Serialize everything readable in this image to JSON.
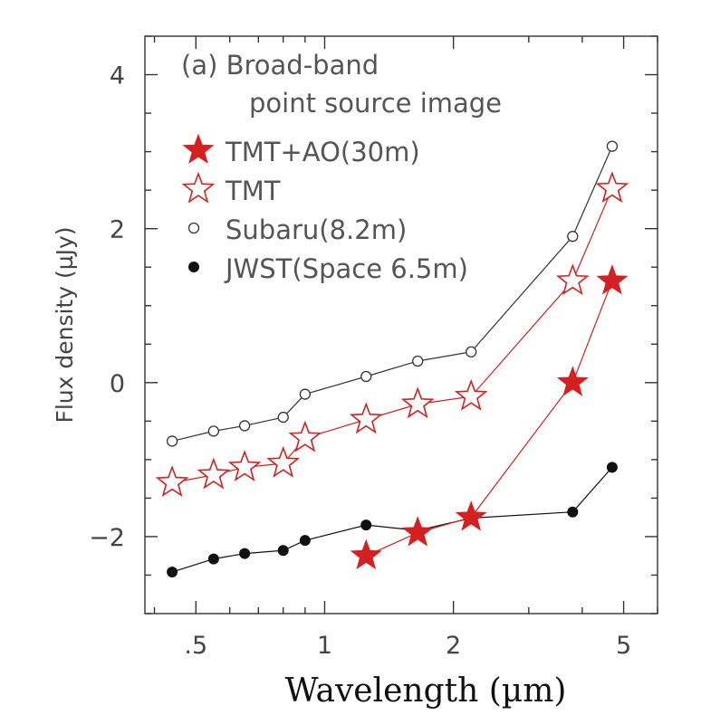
{
  "chart_data": {
    "type": "line",
    "title_lines": [
      "(a) Broad-band",
      "point source image"
    ],
    "xlabel": "Wavelength (µm)",
    "ylabel": "Flux density (µJy)",
    "xscale": "log",
    "xlim": [
      0.38,
      6.0
    ],
    "ylim": [
      -3.0,
      4.5
    ],
    "xticks": [
      {
        "value": 0.5,
        "label": ".5"
      },
      {
        "value": 1,
        "label": "1"
      },
      {
        "value": 2,
        "label": "2"
      },
      {
        "value": 5,
        "label": "5"
      }
    ],
    "yticks": [
      {
        "value": -2,
        "label": "−2"
      },
      {
        "value": 0,
        "label": "0"
      },
      {
        "value": 2,
        "label": "2"
      },
      {
        "value": 4,
        "label": "4"
      }
    ],
    "legend_position": "top-left",
    "series": [
      {
        "name": "TMT+AO(30m)",
        "marker": "filled-star",
        "color": "#d42020",
        "x": [
          1.25,
          1.65,
          2.2,
          3.8,
          4.7
        ],
        "y": [
          -2.25,
          -1.95,
          -1.75,
          0.0,
          1.32
        ]
      },
      {
        "name": "TMT",
        "marker": "open-star",
        "color": "#d42020",
        "x": [
          0.44,
          0.55,
          0.65,
          0.8,
          0.9,
          1.25,
          1.65,
          2.2,
          3.8,
          4.7
        ],
        "y": [
          -1.3,
          -1.2,
          -1.1,
          -1.05,
          -0.72,
          -0.48,
          -0.28,
          -0.18,
          1.32,
          2.52
        ]
      },
      {
        "name": "Subaru(8.2m)",
        "marker": "open-circle",
        "color": "#333333",
        "x": [
          0.44,
          0.55,
          0.65,
          0.8,
          0.9,
          1.25,
          1.65,
          2.2,
          3.8,
          4.7
        ],
        "y": [
          -0.76,
          -0.63,
          -0.56,
          -0.45,
          -0.15,
          0.08,
          0.28,
          0.4,
          1.9,
          3.07
        ]
      },
      {
        "name": "JWST(Space 6.5m)",
        "marker": "filled-circle",
        "color": "#111111",
        "x": [
          0.44,
          0.55,
          0.65,
          0.8,
          0.9,
          1.25,
          1.65,
          2.2,
          3.8,
          4.7
        ],
        "y": [
          -2.46,
          -2.29,
          -2.22,
          -2.18,
          -2.05,
          -1.85,
          -1.92,
          -1.76,
          -1.68,
          -1.1
        ]
      }
    ]
  }
}
